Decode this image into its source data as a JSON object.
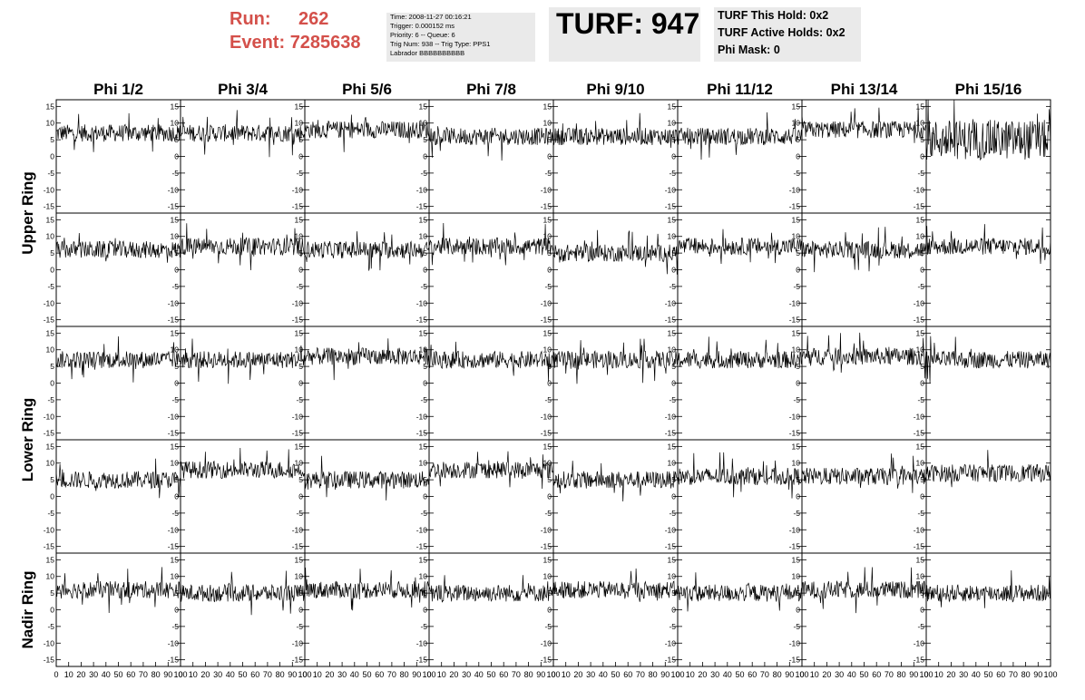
{
  "header": {
    "run_label": "Run:",
    "run_value": "262",
    "event_label": "Event:",
    "event_value": "7285638"
  },
  "info": {
    "time": "Time: 2008-11-27 00:16:21",
    "trigger": "Trigger: 0.000152 ms",
    "priority": "Priority: 6 -- Queue: 6",
    "trignum": "Trig Num: 938 -- Trig Type: PPS1",
    "labrador": "Labrador BBBBBBBBBB"
  },
  "turf": {
    "title": "TURF: 947"
  },
  "holds": {
    "this_hold": "TURF This Hold: 0x2",
    "active_holds": "TURF Active Holds: 0x2",
    "phi_mask": "Phi Mask: 0"
  },
  "chart_data": {
    "type": "line",
    "columns": [
      "Phi 1/2",
      "Phi 3/4",
      "Phi 5/6",
      "Phi 7/8",
      "Phi 9/10",
      "Phi 11/12",
      "Phi 13/14",
      "Phi 15/16"
    ],
    "row_groups": [
      {
        "label": "Upper Ring",
        "panels": 2
      },
      {
        "label": "Lower Ring",
        "panels": 2
      },
      {
        "label": "Nadir Ring",
        "panels": 1
      }
    ],
    "ylim": [
      -17,
      17
    ],
    "y_ticks": [
      -15,
      -10,
      -5,
      0,
      5,
      10,
      15
    ],
    "xlim": [
      0,
      100
    ],
    "x_ticks": [
      0,
      10,
      20,
      30,
      40,
      50,
      60,
      70,
      80,
      90,
      100
    ],
    "x_tick_labels": [
      "0",
      "10",
      "20",
      "30",
      "40",
      "50",
      "60",
      "70",
      "80",
      "90",
      "100"
    ],
    "approx_baselines": [
      [
        7,
        7,
        8,
        6,
        6,
        6,
        8,
        5
      ],
      [
        6,
        7,
        6,
        7,
        5,
        7,
        6,
        7
      ],
      [
        7,
        7,
        8,
        7,
        7,
        7,
        8,
        7
      ],
      [
        5,
        8,
        5,
        8,
        5,
        6,
        6,
        7
      ],
      [
        6,
        5,
        6,
        5,
        6,
        5,
        6,
        5
      ]
    ],
    "noise_amplitude_note": "traces fluctuate roughly ±3 around baseline; Phi 15/16 upper panel up to ±7"
  }
}
